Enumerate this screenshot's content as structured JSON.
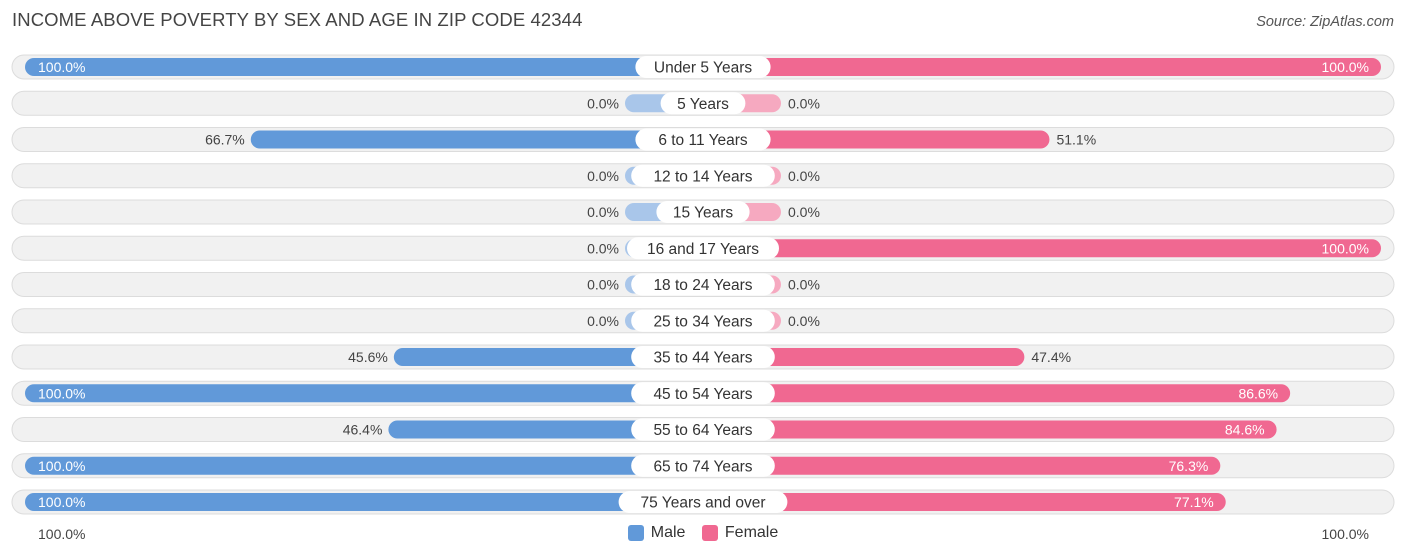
{
  "header": {
    "title": "INCOME ABOVE POVERTY BY SEX AND AGE IN ZIP CODE 42344",
    "source": "Source: ZipAtlas.com"
  },
  "colors": {
    "male_strong": "#6199d9",
    "male_light": "#a9c6ea",
    "female_strong": "#f06891",
    "female_light": "#f6a9c0"
  },
  "chart_data": {
    "type": "bar",
    "orientation": "horizontal-diverging",
    "title": "INCOME ABOVE POVERTY BY SEX AND AGE IN ZIP CODE 42344",
    "categories": [
      "Under 5 Years",
      "5 Years",
      "6 to 11 Years",
      "12 to 14 Years",
      "15 Years",
      "16 and 17 Years",
      "18 to 24 Years",
      "25 to 34 Years",
      "35 to 44 Years",
      "45 to 54 Years",
      "55 to 64 Years",
      "65 to 74 Years",
      "75 Years and over"
    ],
    "series": [
      {
        "name": "Male",
        "values": [
          100.0,
          0.0,
          66.7,
          0.0,
          0.0,
          0.0,
          0.0,
          0.0,
          45.6,
          100.0,
          46.4,
          100.0,
          100.0
        ]
      },
      {
        "name": "Female",
        "values": [
          100.0,
          0.0,
          51.1,
          0.0,
          0.0,
          100.0,
          0.0,
          0.0,
          47.4,
          86.6,
          84.6,
          76.3,
          77.1
        ]
      }
    ],
    "value_labels": {
      "male": [
        "100.0%",
        "0.0%",
        "66.7%",
        "0.0%",
        "0.0%",
        "0.0%",
        "0.0%",
        "0.0%",
        "45.6%",
        "100.0%",
        "46.4%",
        "100.0%",
        "100.0%"
      ],
      "female": [
        "100.0%",
        "0.0%",
        "51.1%",
        "0.0%",
        "0.0%",
        "100.0%",
        "0.0%",
        "0.0%",
        "47.4%",
        "86.6%",
        "84.6%",
        "76.3%",
        "77.1%"
      ]
    },
    "axis": {
      "left_label": "100.0%",
      "right_label": "100.0%",
      "xlim": [
        -100,
        100
      ]
    },
    "legend": {
      "position": "bottom-center",
      "items": [
        "Male",
        "Female"
      ]
    },
    "grid": false
  }
}
